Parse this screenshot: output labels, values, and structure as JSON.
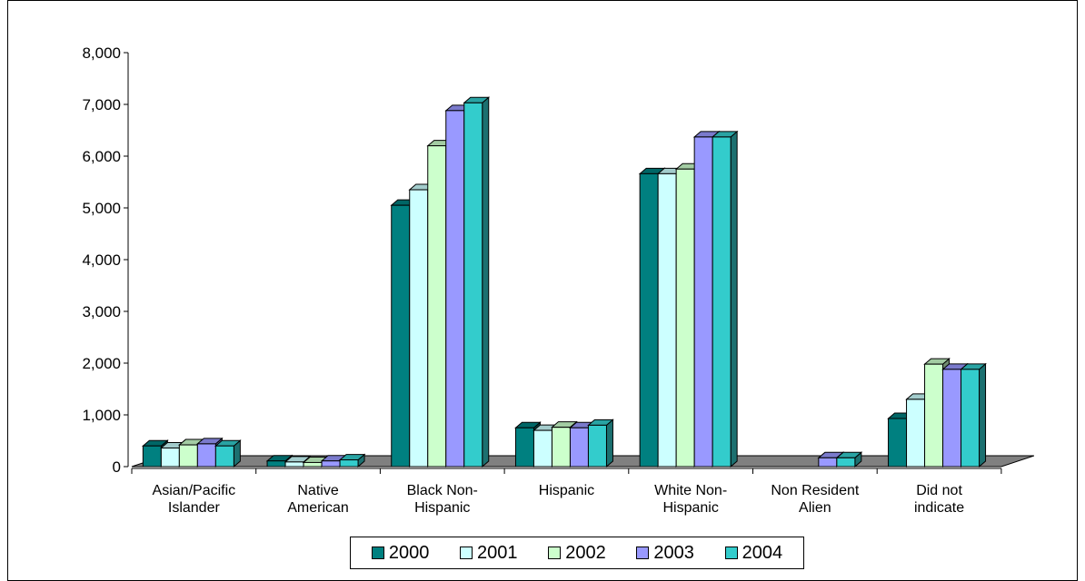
{
  "chart_data": {
    "type": "bar",
    "title": "",
    "xlabel": "",
    "ylabel": "",
    "ylim": [
      0,
      8000
    ],
    "yticks": [
      "0",
      "1,000",
      "2,000",
      "3,000",
      "4,000",
      "5,000",
      "6,000",
      "7,000",
      "8,000"
    ],
    "categories": [
      [
        "Asian/Pacific",
        "Islander"
      ],
      [
        "Native",
        "American"
      ],
      [
        "Black Non-",
        "Hispanic"
      ],
      [
        "Hispanic"
      ],
      [
        "White Non-",
        "Hispanic"
      ],
      [
        "Non Resident",
        "Alien"
      ],
      [
        "Did not",
        "indicate"
      ]
    ],
    "series": [
      {
        "name": "2000",
        "color": "#008080",
        "values": [
          400,
          110,
          5050,
          750,
          5660,
          0,
          930
        ]
      },
      {
        "name": "2001",
        "color": "#CCFFFF",
        "values": [
          360,
          90,
          5350,
          700,
          5660,
          0,
          1300
        ]
      },
      {
        "name": "2002",
        "color": "#CCFFCC",
        "values": [
          420,
          80,
          6200,
          760,
          5750,
          0,
          1980
        ]
      },
      {
        "name": "2003",
        "color": "#9999FF",
        "values": [
          440,
          110,
          6880,
          750,
          6370,
          170,
          1880
        ]
      },
      {
        "name": "2004",
        "color": "#33CCCC",
        "values": [
          400,
          130,
          7030,
          800,
          6370,
          170,
          1880
        ]
      }
    ],
    "legend_position": "bottom",
    "grid": false
  }
}
